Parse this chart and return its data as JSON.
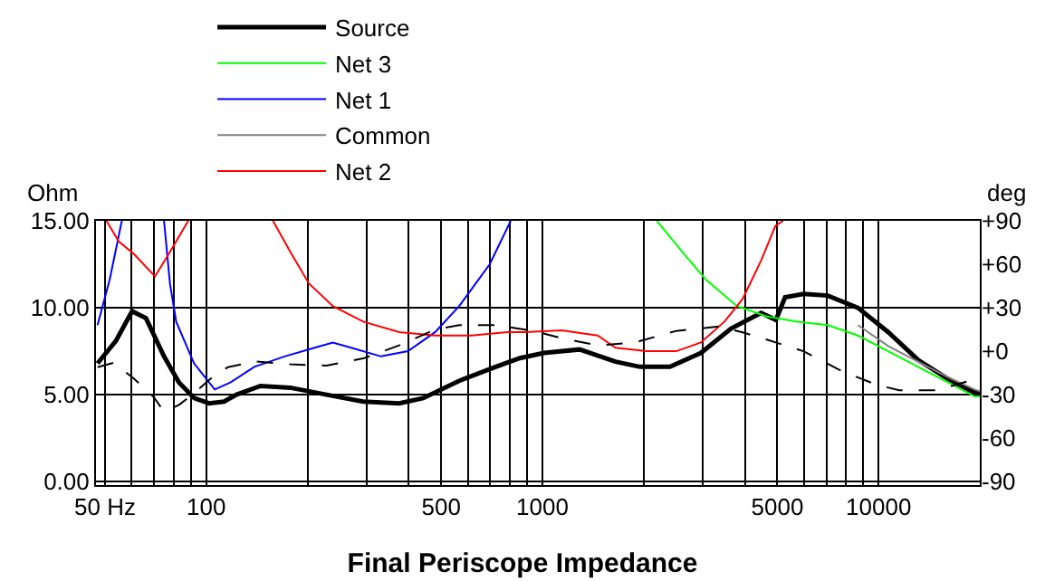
{
  "chart_data": {
    "type": "line",
    "title": "Final Periscope Impedance",
    "ylabel": "Ohm",
    "y2label": "deg",
    "xlim": [
      47,
      20000
    ],
    "log": "x",
    "grid": true,
    "legend": "top",
    "xticks": [
      {
        "value": 50,
        "label": "50 Hz"
      },
      {
        "value": 60,
        "label": null
      },
      {
        "value": 70,
        "label": null
      },
      {
        "value": 80,
        "label": null
      },
      {
        "value": 90,
        "label": null
      },
      100,
      {
        "value": 200,
        "label": null
      },
      {
        "value": 300,
        "label": null
      },
      {
        "value": 400,
        "label": null
      },
      500,
      {
        "value": 600,
        "label": null
      },
      {
        "value": 700,
        "label": null
      },
      {
        "value": 800,
        "label": null
      },
      {
        "value": 900,
        "label": null
      },
      1000,
      {
        "value": 2000,
        "label": null
      },
      {
        "value": 3000,
        "label": null
      },
      {
        "value": 4000,
        "label": null
      },
      5000,
      {
        "value": 6000,
        "label": null
      },
      {
        "value": 7000,
        "label": null
      },
      {
        "value": 8000,
        "label": null
      },
      {
        "value": 9000,
        "label": null
      },
      10000,
      {
        "value": 20000,
        "label": null
      }
    ],
    "ylim": [
      -0.2,
      15
    ],
    "yticks": [
      {
        "value": 0,
        "label": "0.00"
      },
      {
        "value": 5,
        "label": "5.00"
      },
      {
        "value": 10,
        "label": "10.00"
      },
      {
        "value": 15,
        "label": "15.00"
      }
    ],
    "y2lim": [
      -92.4,
      90
    ],
    "y2ticks": [
      -90,
      -60,
      -30,
      {
        "value": 0,
        "label": "+0"
      },
      {
        "value": 30,
        "label": "+30"
      },
      {
        "value": 60,
        "label": "+60"
      },
      {
        "value": 90,
        "label": "+90"
      }
    ],
    "series": [
      {
        "name": "Source",
        "color": "#000000",
        "x": [
          47.5,
          53.9,
          60.2,
          66.2,
          74.9,
          83,
          92.1,
          102,
          113,
          123,
          145,
          178,
          228,
          293,
          375,
          442,
          566,
          726,
          857,
          1010,
          1290,
          1650,
          1950,
          2395,
          2960,
          3640,
          4470,
          4950,
          5270,
          5980,
          7060,
          8680,
          10680,
          13100,
          16100,
          18900,
          20000
        ],
        "values": [
          6.8,
          8.1,
          9.8,
          9.4,
          7.2,
          5.7,
          4.8,
          4.5,
          4.6,
          5.0,
          5.5,
          5.4,
          5.0,
          4.6,
          4.5,
          4.8,
          5.8,
          6.6,
          7.1,
          7.4,
          7.6,
          6.9,
          6.6,
          6.6,
          7.4,
          8.8,
          9.7,
          9.3,
          10.6,
          10.8,
          10.7,
          10.0,
          8.6,
          7.0,
          5.9,
          5.2,
          5.1
        ]
      },
      {
        "name": "Net 3",
        "color": "#00ff00",
        "x": [
          2190,
          2610,
          3070,
          3790,
          4650,
          5740,
          7060,
          8680,
          10680,
          13100,
          16100,
          19300,
          20000
        ],
        "values": [
          15.0,
          13.2,
          11.6,
          10.1,
          9.5,
          9.2,
          9.0,
          8.4,
          7.5,
          6.6,
          5.7,
          4.9,
          4.9
        ]
      },
      {
        "name": "Net 1",
        "color": "#0000ff",
        "x": [
          47.5,
          51.6,
          56.1,
          65,
          74.9,
          78,
          81.4,
          92,
          106,
          118,
          139,
          171,
          210,
          238,
          270,
          331,
          398,
          480,
          566,
          697,
          805
        ],
        "values": [
          9.0,
          11.6,
          15.0,
          null,
          15.0,
          11.4,
          9.2,
          6.8,
          5.3,
          5.7,
          6.6,
          7.2,
          7.7,
          8.0,
          7.7,
          7.2,
          7.5,
          8.6,
          10.1,
          12.5,
          15.0
        ]
      },
      {
        "name": "Common",
        "color": "#808080",
        "x": [
          8680,
          10680,
          13100,
          16100,
          19300,
          20000
        ],
        "values": [
          9.0,
          7.8,
          6.9,
          6.0,
          5.3,
          5.2
        ]
      },
      {
        "name": "Net 2",
        "color": "#ff0000",
        "x": [
          50.5,
          55,
          60.9,
          70.4,
          78,
          88.4,
          120,
          158,
          178,
          202,
          238,
          293,
          375,
          480,
          614,
          787,
          890,
          1140,
          1460,
          1650,
          2040,
          2500,
          2960,
          3480,
          3940,
          4470,
          4930,
          5200
        ],
        "values": [
          15.0,
          13.8,
          13.1,
          11.8,
          13.2,
          15.0,
          null,
          15.0,
          13.2,
          11.4,
          10.1,
          9.2,
          8.6,
          8.4,
          8.4,
          8.6,
          8.6,
          8.7,
          8.4,
          7.7,
          7.5,
          7.5,
          8.0,
          9.2,
          10.5,
          12.7,
          14.7,
          15.0
        ]
      },
      {
        "color": "#000000",
        "axis": "y2",
        "line_style": "dashed",
        "x": [
          47.5,
          53,
          61,
          70,
          75,
          83,
          92,
          103,
          116,
          140,
          178,
          228,
          293,
          375,
          480,
          566,
          726,
          940,
          1140,
          1460,
          1880,
          2500,
          3340,
          3940,
          4650,
          5980,
          7660,
          9810,
          11520,
          14850,
          18900,
          20000
        ],
        "values": [
          -11,
          -8,
          -19,
          -32,
          -42,
          -37,
          -29,
          -19,
          -11,
          -7,
          -9,
          -10,
          -5,
          4,
          15,
          18,
          18,
          14,
          9,
          4,
          6,
          14,
          17,
          13,
          8,
          0,
          -13,
          -23,
          -27,
          -27,
          -20,
          -18
        ]
      }
    ]
  }
}
